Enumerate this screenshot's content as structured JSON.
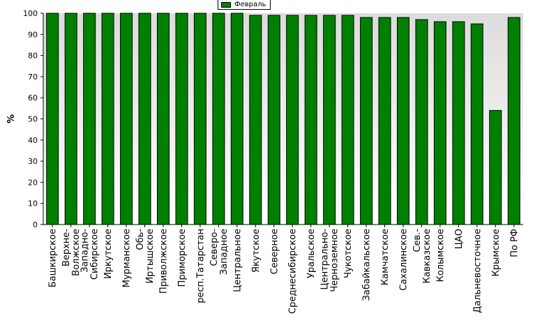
{
  "chart_data": {
    "type": "bar",
    "ylabel": "%",
    "xlabel": "",
    "ylim": [
      0,
      100
    ],
    "yticks": [
      0,
      10,
      20,
      30,
      40,
      50,
      60,
      70,
      80,
      90,
      100
    ],
    "grid": "off",
    "legend": "top-center",
    "categories": [
      "Башкирское",
      "Верхне-Волжское",
      "Западно-Сибирское",
      "Иркутское",
      "Мурманское",
      "Обь-Иртышское",
      "Приволжское",
      "Приморское",
      "респ.Татарстан",
      "Северо-Западное",
      "Центральное",
      "Якутское",
      "Северное",
      "Среднесибирское",
      "Уральское",
      "Центрально-Черноземное",
      "Чукотское",
      "Забайкальское",
      "Камчатское",
      "Сахалинское",
      "Сев.-Кавказское",
      "Колымское",
      "ЦАО",
      "Дальневосточное",
      "Крымское",
      "По РФ"
    ],
    "series": [
      {
        "name": "Февраль",
        "color": "#008000",
        "values": [
          100,
          100,
          100,
          100,
          100,
          100,
          100,
          100,
          100,
          100,
          100,
          99,
          99,
          99,
          99,
          99,
          99,
          98,
          98,
          98,
          97,
          96,
          96,
          95,
          54,
          98
        ]
      }
    ]
  }
}
